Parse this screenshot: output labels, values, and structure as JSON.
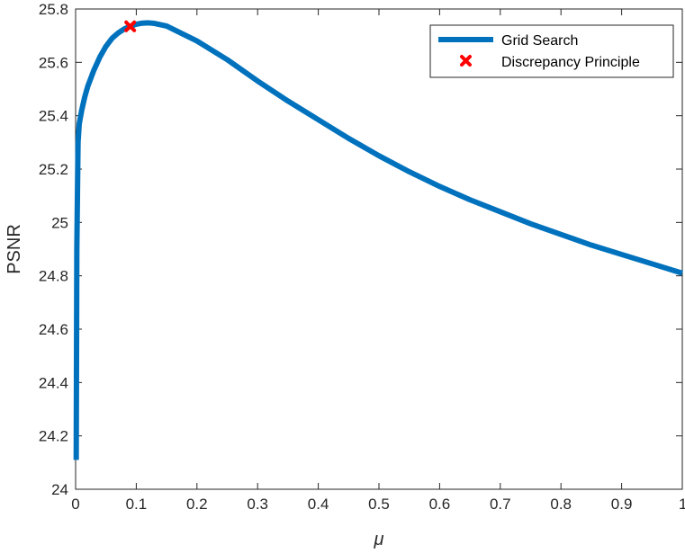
{
  "chart_data": {
    "type": "line",
    "xlabel": "μ",
    "ylabel": "PSNR",
    "xlim": [
      0,
      1
    ],
    "ylim": [
      24,
      25.8
    ],
    "x_ticks": [
      "0",
      "0.1",
      "0.2",
      "0.3",
      "0.4",
      "0.5",
      "0.6",
      "0.7",
      "0.8",
      "0.9",
      "1"
    ],
    "y_ticks": [
      "24",
      "24.2",
      "24.4",
      "24.6",
      "24.8",
      "25",
      "25.2",
      "25.4",
      "25.6",
      "25.8"
    ],
    "grid": false,
    "legend_position": "top-right",
    "series": [
      {
        "name": "Grid Search",
        "color": "#0072BD",
        "style": "line",
        "x": [
          0.001,
          0.002,
          0.004,
          0.006,
          0.01,
          0.015,
          0.02,
          0.03,
          0.04,
          0.05,
          0.06,
          0.07,
          0.08,
          0.09,
          0.1,
          0.11,
          0.12,
          0.13,
          0.15,
          0.2,
          0.25,
          0.3,
          0.35,
          0.4,
          0.45,
          0.5,
          0.55,
          0.6,
          0.65,
          0.7,
          0.75,
          0.8,
          0.85,
          0.9,
          0.95,
          1.0
        ],
        "y": [
          24.11,
          24.9,
          25.3,
          25.37,
          25.42,
          25.47,
          25.51,
          25.57,
          25.62,
          25.66,
          25.69,
          25.71,
          25.725,
          25.735,
          25.743,
          25.747,
          25.748,
          25.746,
          25.736,
          25.68,
          25.61,
          25.53,
          25.455,
          25.385,
          25.315,
          25.25,
          25.19,
          25.135,
          25.085,
          25.04,
          24.995,
          24.955,
          24.915,
          24.88,
          24.845,
          24.81
        ]
      },
      {
        "name": "Discrepancy Principle",
        "color": "#FF0000",
        "style": "marker",
        "marker": "x",
        "x": [
          0.09
        ],
        "y": [
          25.735
        ]
      }
    ]
  }
}
